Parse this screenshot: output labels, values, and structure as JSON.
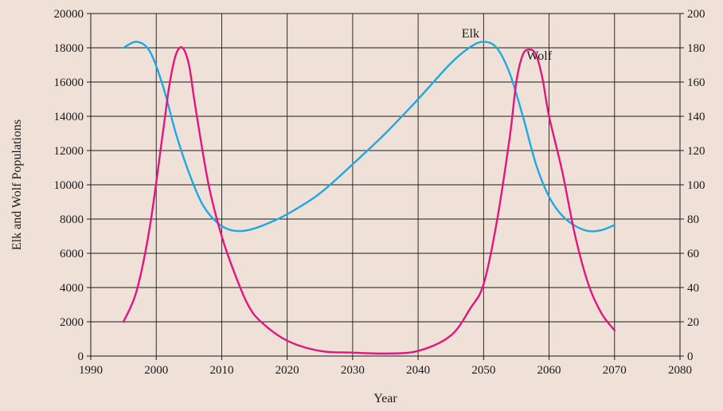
{
  "chart_data": {
    "type": "line",
    "title": "",
    "xlabel": "Year",
    "ylabel": "Elk and Wolf Populations",
    "xlim": [
      1990,
      2080
    ],
    "xticks": [
      "1990",
      "2000",
      "2010",
      "2020",
      "2030",
      "2040",
      "2050",
      "2060",
      "2070",
      "2080"
    ],
    "ylim_left": [
      0,
      20000
    ],
    "yticks_left": [
      "0",
      "2000",
      "4000",
      "6000",
      "8000",
      "10000",
      "12000",
      "14000",
      "16000",
      "18000",
      "20000"
    ],
    "ylim_right": [
      0,
      200
    ],
    "yticks_right": [
      "0",
      "20",
      "40",
      "60",
      "80",
      "100",
      "120",
      "140",
      "160",
      "180",
      "200"
    ],
    "grid": true,
    "series": [
      {
        "name": "Elk",
        "axis": "left",
        "color": "#1fa9e1",
        "x": [
          1995,
          1997,
          1999,
          2001,
          2003,
          2005,
          2007,
          2009,
          2011,
          2013,
          2015,
          2018,
          2021,
          2025,
          2030,
          2035,
          2040,
          2045,
          2048,
          2050,
          2052,
          2054,
          2056,
          2058,
          2060,
          2062,
          2064,
          2066,
          2068,
          2070
        ],
        "y": [
          18000,
          18350,
          17800,
          15800,
          13000,
          10700,
          8900,
          7900,
          7400,
          7300,
          7450,
          7900,
          8500,
          9500,
          11200,
          13000,
          15000,
          17100,
          18050,
          18350,
          18000,
          16500,
          14000,
          11200,
          9300,
          8200,
          7600,
          7300,
          7350,
          7650
        ]
      },
      {
        "name": "Wolf",
        "axis": "right",
        "color": "#e3157e",
        "x": [
          1995,
          1997,
          1999,
          2001,
          2002,
          2003,
          2004,
          2005,
          2006,
          2008,
          2010,
          2012,
          2014,
          2016,
          2020,
          2025,
          2030,
          2035,
          2040,
          2045,
          2048,
          2050,
          2052,
          2054,
          2055,
          2056,
          2057,
          2058,
          2059,
          2060,
          2062,
          2064,
          2066,
          2068,
          2070
        ],
        "y": [
          20,
          38,
          75,
          130,
          158,
          176,
          180,
          170,
          145,
          100,
          70,
          48,
          30,
          20,
          9,
          3,
          2,
          1.5,
          3,
          12,
          28,
          42,
          78,
          128,
          160,
          176,
          179,
          176,
          162,
          140,
          108,
          70,
          42,
          25,
          15
        ]
      }
    ],
    "annotations": [
      {
        "text": "Elk",
        "x": 2048,
        "y": 18600,
        "axis": "left"
      },
      {
        "text": "Wolf",
        "x": 2058.5,
        "y": 173,
        "axis": "right"
      }
    ]
  }
}
